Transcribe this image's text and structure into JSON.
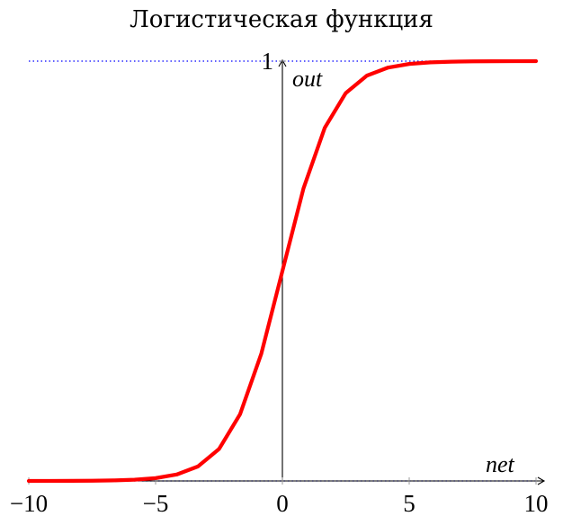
{
  "chart_data": {
    "type": "line",
    "title": "Логистическая функция",
    "xlabel": "net",
    "ylabel": "out",
    "xlim": [
      -10,
      10
    ],
    "ylim": [
      0,
      1
    ],
    "x_ticks": [
      -10,
      -5,
      0,
      5,
      10
    ],
    "x_tick_labels": [
      "−10",
      "−5",
      "0",
      "5",
      "10"
    ],
    "y_ticks": [
      1
    ],
    "y_tick_labels": [
      "1"
    ],
    "grid": false,
    "series": [
      {
        "color": "#ff0000",
        "x": [
          -10,
          -9.17,
          -8.33,
          -7.5,
          -6.67,
          -5.83,
          -5,
          -4.17,
          -3.33,
          -2.5,
          -1.67,
          -0.83,
          0,
          0.83,
          1.67,
          2.5,
          3.33,
          4.17,
          5,
          5.83,
          6.67,
          7.5,
          8.33,
          9.17,
          10
        ],
        "y": [
          5e-05,
          0.0001,
          0.0002,
          0.0006,
          0.0013,
          0.0029,
          0.0067,
          0.0153,
          0.0345,
          0.0759,
          0.1588,
          0.3035,
          0.5,
          0.6965,
          0.8412,
          0.9241,
          0.9655,
          0.9847,
          0.9933,
          0.9971,
          0.9987,
          0.9994,
          0.9998,
          0.9999,
          0.99995
        ]
      }
    ],
    "reference_lines": [
      {
        "y": 1,
        "color": "#0000ff",
        "style": "dotted"
      },
      {
        "y": 0,
        "color": "#0000ff",
        "style": "dotted"
      }
    ]
  }
}
